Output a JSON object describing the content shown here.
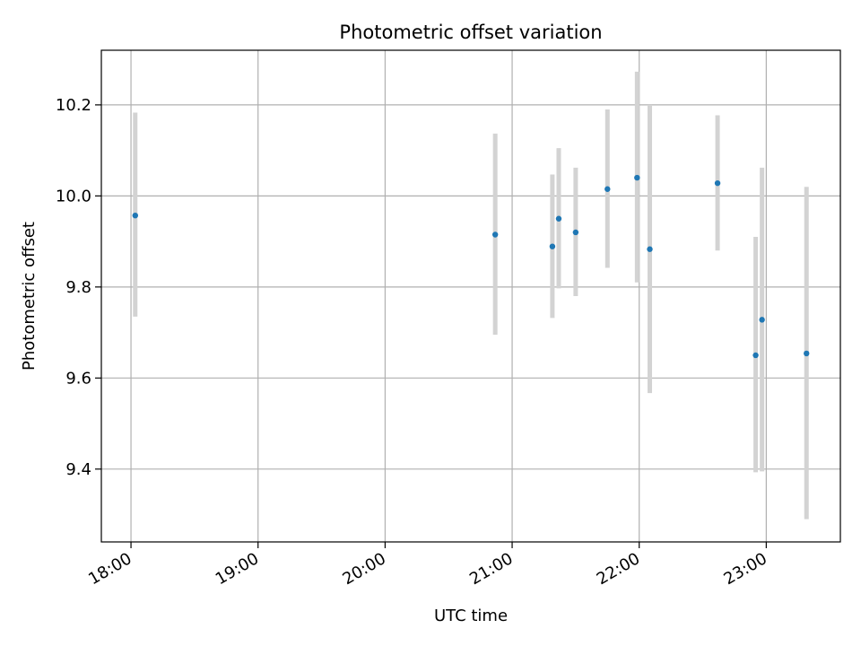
{
  "chart_data": {
    "type": "scatter",
    "title": "Photometric offset variation",
    "xlabel": "UTC time",
    "ylabel": "Photometric offset",
    "x_ticks": [
      "18:00",
      "19:00",
      "20:00",
      "21:00",
      "22:00",
      "23:00"
    ],
    "y_ticks": [
      "9.4",
      "9.6",
      "9.8",
      "10.0",
      "10.2"
    ],
    "xlim": [
      "17:46",
      "23:35"
    ],
    "ylim": [
      9.24,
      10.32
    ],
    "grid": true,
    "points": [
      {
        "x": "18:02",
        "y": 9.957,
        "yerr_low": 9.735,
        "yerr_high": 10.183
      },
      {
        "x": "20:52",
        "y": 9.915,
        "yerr_low": 9.695,
        "yerr_high": 10.137
      },
      {
        "x": "21:19",
        "y": 9.889,
        "yerr_low": 9.732,
        "yerr_high": 10.047
      },
      {
        "x": "21:22",
        "y": 9.95,
        "yerr_low": 9.797,
        "yerr_high": 10.105
      },
      {
        "x": "21:30",
        "y": 9.92,
        "yerr_low": 9.78,
        "yerr_high": 10.062
      },
      {
        "x": "21:45",
        "y": 10.015,
        "yerr_low": 9.842,
        "yerr_high": 10.19
      },
      {
        "x": "21:59",
        "y": 10.04,
        "yerr_low": 9.81,
        "yerr_high": 10.273
      },
      {
        "x": "22:05",
        "y": 9.883,
        "yerr_low": 9.567,
        "yerr_high": 10.2
      },
      {
        "x": "22:37",
        "y": 10.028,
        "yerr_low": 9.88,
        "yerr_high": 10.177
      },
      {
        "x": "22:55",
        "y": 9.65,
        "yerr_low": 9.393,
        "yerr_high": 9.91
      },
      {
        "x": "22:58",
        "y": 9.728,
        "yerr_low": 9.395,
        "yerr_high": 10.062
      },
      {
        "x": "23:19",
        "y": 9.654,
        "yerr_low": 9.29,
        "yerr_high": 10.02
      }
    ],
    "colors": {
      "marker": "#1f77b4",
      "errorbar": "#d3d3d3",
      "grid": "#b0b0b0",
      "axes": "#000000"
    }
  }
}
